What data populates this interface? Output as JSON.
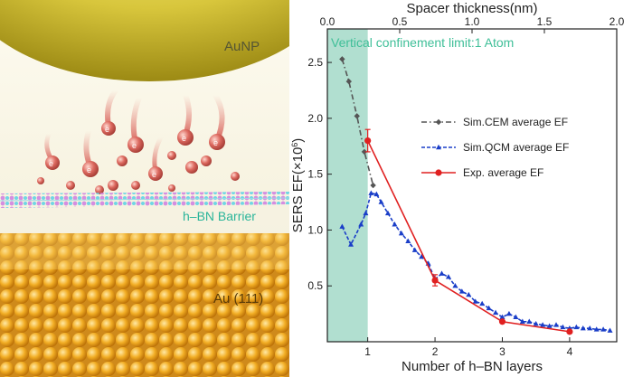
{
  "illustration": {
    "labels": {
      "aunp": "AuNP",
      "barrier": "h–BN Barrier",
      "substrate": "Au (111)",
      "electron": "e"
    },
    "colors": {
      "gold": "#d6c436",
      "barrier_text": "#2bb59a",
      "electron": "#d2645c",
      "substrate": "#e8a21a"
    }
  },
  "chart_data": {
    "type": "line",
    "title": "",
    "xlabel": "Number of h–BN layers",
    "x2label": "Spacer thickness(nm)",
    "ylabel": "SERS EF(×10",
    "ylabel_exp": "6",
    "ylabel_close": ")",
    "xlim": [
      0.4,
      4.7
    ],
    "ylim": [
      0.0,
      2.8
    ],
    "x2lim": [
      0.0,
      2.0
    ],
    "x_ticks": [
      1,
      2,
      3,
      4
    ],
    "x_tick_labels": [
      "1",
      "2",
      "3",
      "4"
    ],
    "y_ticks": [
      0.5,
      1.0,
      1.5,
      2.0,
      2.5
    ],
    "y_tick_labels": [
      "0.5",
      "1.0",
      "1.5",
      "2.0",
      "2.5"
    ],
    "x2_ticks": [
      0.0,
      0.5,
      1.0,
      1.5,
      2.0
    ],
    "x2_tick_labels": [
      "0.0",
      "0.5",
      "1.0",
      "1.5",
      "2.0"
    ],
    "shaded_region": {
      "x_range": [
        0.4,
        1.0
      ],
      "label": "Vertical confinement limit:1 Atom",
      "color": "#a8dccb"
    },
    "legend_position": "right",
    "series": [
      {
        "name": "Sim.CEM average EF",
        "color": "#555555",
        "style": "dash-dot",
        "marker": "diamond",
        "x": [
          0.62,
          0.72,
          0.84,
          0.95,
          1.08
        ],
        "y": [
          2.53,
          2.33,
          2.02,
          1.7,
          1.4
        ]
      },
      {
        "name": "Sim.QCM average EF",
        "color": "#1a3ec8",
        "style": "dash",
        "marker": "triangle",
        "x": [
          0.62,
          0.75,
          0.9,
          0.97,
          1.05,
          1.13,
          1.2,
          1.3,
          1.4,
          1.5,
          1.6,
          1.7,
          1.8,
          1.9,
          2.0,
          2.1,
          2.2,
          2.3,
          2.4,
          2.5,
          2.6,
          2.7,
          2.8,
          2.9,
          3.0,
          3.1,
          3.2,
          3.3,
          3.4,
          3.5,
          3.6,
          3.7,
          3.8,
          3.9,
          4.0,
          4.1,
          4.2,
          4.3,
          4.4,
          4.5,
          4.6
        ],
        "y": [
          1.03,
          0.87,
          1.05,
          1.15,
          1.33,
          1.32,
          1.25,
          1.15,
          1.05,
          0.97,
          0.9,
          0.82,
          0.76,
          0.7,
          0.56,
          0.61,
          0.58,
          0.5,
          0.45,
          0.42,
          0.36,
          0.34,
          0.3,
          0.26,
          0.22,
          0.25,
          0.22,
          0.18,
          0.18,
          0.16,
          0.15,
          0.14,
          0.15,
          0.13,
          0.12,
          0.13,
          0.12,
          0.12,
          0.11,
          0.11,
          0.1
        ]
      },
      {
        "name": "Exp. average EF",
        "color": "#e02020",
        "style": "solid",
        "marker": "circle",
        "x": [
          1.0,
          2.0,
          3.0,
          4.0
        ],
        "y": [
          1.8,
          0.55,
          0.18,
          0.09
        ],
        "error": [
          0.1,
          0.05,
          0.0,
          0.0
        ]
      }
    ]
  }
}
